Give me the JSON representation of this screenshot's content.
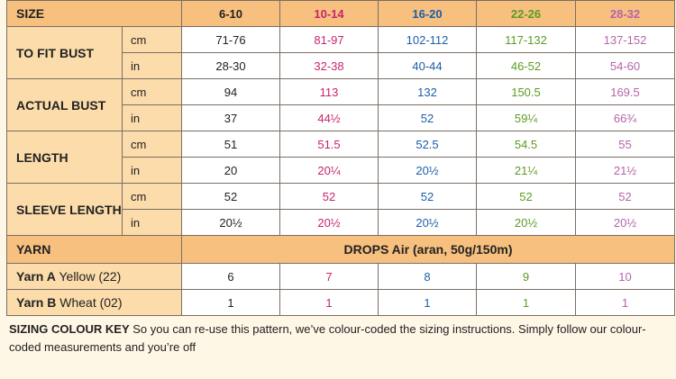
{
  "header": {
    "size_label": "SIZE",
    "sizes": [
      "6-10",
      "10-14",
      "16-20",
      "22-26",
      "28-32"
    ]
  },
  "colors": {
    "size1": "#222222",
    "size2": "#c8246f",
    "size3": "#1d5ea8",
    "size4": "#5c9b24",
    "size5": "#b664a8",
    "header_bg": "#f7c07f",
    "label_bg": "#fbdcaa"
  },
  "rows": [
    {
      "label": "TO FIT BUST",
      "cm": {
        "unit": "cm",
        "values": [
          "71-76",
          "81-97",
          "102-112",
          "117-132",
          "137-152"
        ]
      },
      "in": {
        "unit": "in",
        "values": [
          "28-30",
          "32-38",
          "40-44",
          "46-52",
          "54-60"
        ]
      }
    },
    {
      "label": "ACTUAL BUST",
      "cm": {
        "unit": "cm",
        "values": [
          "94",
          "113",
          "132",
          "150.5",
          "169.5"
        ]
      },
      "in": {
        "unit": "in",
        "values": [
          "37",
          "44½",
          "52",
          "59¼",
          "66¾"
        ]
      }
    },
    {
      "label": "LENGTH",
      "cm": {
        "unit": "cm",
        "values": [
          "51",
          "51.5",
          "52.5",
          "54.5",
          "55"
        ]
      },
      "in": {
        "unit": "in",
        "values": [
          "20",
          "20¼",
          "20½",
          "21¼",
          "21½"
        ]
      }
    },
    {
      "label": "SLEEVE LENGTH",
      "cm": {
        "unit": "cm",
        "values": [
          "52",
          "52",
          "52",
          "52",
          "52"
        ]
      },
      "in": {
        "unit": "in",
        "values": [
          "20½",
          "20½",
          "20½",
          "20½",
          "20½"
        ]
      }
    }
  ],
  "yarn": {
    "label": "YARN",
    "description": "DROPS Air (aran, 50g/150m)",
    "items": [
      {
        "name": "Yarn A",
        "colour": "Yellow (22)",
        "values": [
          "6",
          "7",
          "8",
          "9",
          "10"
        ]
      },
      {
        "name": "Yarn B",
        "colour": "Wheat (02)",
        "values": [
          "1",
          "1",
          "1",
          "1",
          "1"
        ]
      }
    ]
  },
  "key": {
    "title": "SIZING COLOUR KEY",
    "text": "So you can re-use this pattern, we’ve colour-coded the sizing instructions. Simply follow our colour-coded measurements and you’re off"
  }
}
